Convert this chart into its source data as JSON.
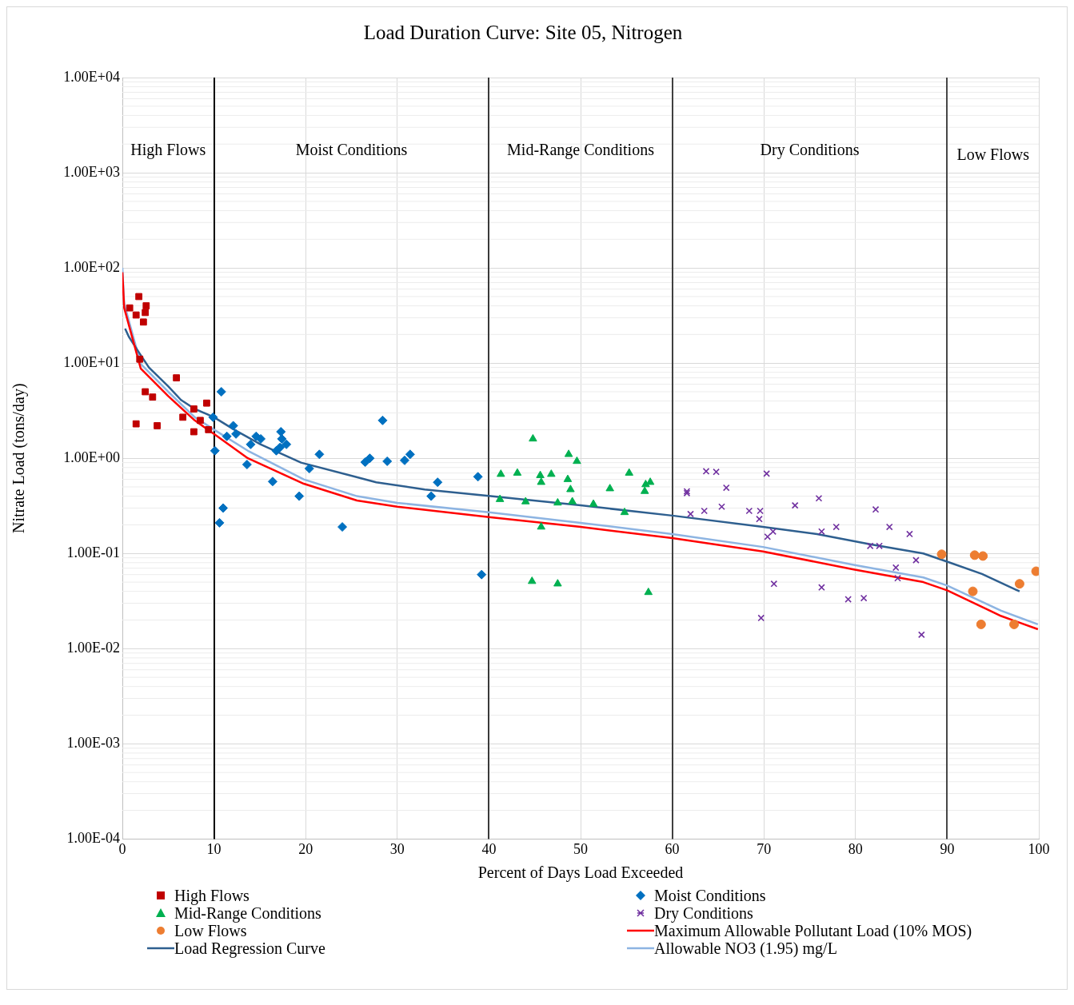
{
  "chart_data": {
    "type": "scatter",
    "title": "Load Duration Curve: Site 05, Nitrogen",
    "xlabel": "Percent of Days Load Exceeded",
    "ylabel": "Nitrate Load (tons/day)",
    "xlim": [
      0,
      100
    ],
    "xticks": [
      0,
      10,
      20,
      30,
      40,
      50,
      60,
      70,
      80,
      90,
      100
    ],
    "ylim": [
      0.0001,
      10000
    ],
    "yticks": [
      {
        "value": 0.0001,
        "label": "1.00E-04"
      },
      {
        "value": 0.001,
        "label": "1.00E-03"
      },
      {
        "value": 0.01,
        "label": "1.00E-02"
      },
      {
        "value": 0.1,
        "label": "1.00E-01"
      },
      {
        "value": 1,
        "label": "1.00E+00"
      },
      {
        "value": 10,
        "label": "1.00E+01"
      },
      {
        "value": 100,
        "label": "1.00E+02"
      },
      {
        "value": 1000,
        "label": "1.00E+03"
      },
      {
        "value": 10000,
        "label": "1.00E+04"
      }
    ],
    "log": "y",
    "grid": true,
    "legend": "bottom",
    "ref_lines": [
      {
        "axis": "x",
        "value": 10,
        "color": "#000000"
      },
      {
        "axis": "x",
        "value": 40,
        "color": "#3a3a3a"
      },
      {
        "axis": "x",
        "value": 60,
        "color": "#404040"
      },
      {
        "axis": "x",
        "value": 90,
        "color": "#474747"
      }
    ],
    "annotations": [
      "High Flows",
      "Moist Conditions",
      "Mid-Range Conditions",
      "Dry Conditions",
      "Low Flows"
    ],
    "series": [
      {
        "name": "High Flows",
        "type": "scatter",
        "marker": "square",
        "color": "#c00000",
        "x": [
          0.8,
          1.5,
          1.8,
          2.3,
          2.5,
          2.6,
          1.9,
          1.5,
          2.5,
          3.3,
          3.8,
          5.9,
          6.6,
          7.8,
          7.8,
          8.5,
          9.2,
          9.4
        ],
        "values": [
          38,
          32,
          50,
          27,
          34,
          40,
          11,
          2.3,
          5.0,
          4.4,
          2.2,
          7.0,
          2.7,
          3.3,
          1.9,
          2.5,
          3.8,
          2.0
        ]
      },
      {
        "name": "Moist Conditions",
        "type": "scatter",
        "marker": "diamond",
        "color": "#0070c0",
        "x": [
          9.9,
          10.1,
          10.8,
          10.6,
          11.0,
          11.4,
          12.1,
          12.4,
          13.6,
          14.0,
          14.6,
          15.1,
          16.4,
          16.8,
          17.2,
          17.3,
          17.4,
          17.9,
          19.3,
          20.4,
          21.5,
          24.0,
          26.5,
          27.0,
          28.4,
          28.9,
          30.8,
          31.4,
          33.7,
          34.4,
          38.8,
          39.2
        ],
        "values": [
          2.7,
          1.2,
          5.0,
          0.21,
          0.3,
          1.7,
          2.2,
          1.8,
          0.86,
          1.4,
          1.7,
          1.6,
          0.57,
          1.2,
          1.3,
          1.9,
          1.6,
          1.4,
          0.4,
          0.78,
          1.1,
          0.19,
          0.91,
          1.0,
          2.5,
          0.93,
          0.95,
          1.1,
          0.4,
          0.56,
          0.64,
          0.06
        ]
      },
      {
        "name": "Mid-Range Conditions",
        "type": "scatter",
        "marker": "triangle",
        "color": "#00b050",
        "x": [
          41.3,
          43.1,
          41.2,
          44.0,
          44.8,
          45.6,
          45.7,
          46.8,
          47.5,
          45.7,
          44.7,
          47.5,
          48.6,
          48.7,
          48.9,
          49.1,
          49.6,
          51.4,
          53.2,
          54.8,
          55.3,
          57.0,
          57.1,
          57.6,
          57.4
        ],
        "values": [
          0.68,
          0.7,
          0.37,
          0.35,
          1.6,
          0.66,
          0.56,
          0.68,
          0.34,
          0.19,
          0.051,
          0.048,
          0.6,
          1.1,
          0.47,
          0.35,
          0.93,
          0.33,
          0.48,
          0.27,
          0.7,
          0.45,
          0.53,
          0.56,
          0.039
        ]
      },
      {
        "name": "Dry Conditions",
        "type": "scatter",
        "marker": "cross",
        "color": "#7030a0",
        "x": [
          61.6,
          61.6,
          63.7,
          64.8,
          70.3,
          65.9,
          62.0,
          63.5,
          65.4,
          68.4,
          69.6,
          69.5,
          70.4,
          71.0,
          73.4,
          76.0,
          76.3,
          77.9,
          82.2,
          83.7,
          81.6,
          82.6,
          85.9,
          86.6,
          84.4,
          84.6,
          71.1,
          76.3,
          79.2,
          80.9,
          69.7,
          87.2
        ],
        "values": [
          0.45,
          0.43,
          0.73,
          0.72,
          0.69,
          0.49,
          0.26,
          0.28,
          0.31,
          0.28,
          0.28,
          0.23,
          0.15,
          0.17,
          0.32,
          0.38,
          0.17,
          0.19,
          0.29,
          0.19,
          0.12,
          0.12,
          0.16,
          0.085,
          0.071,
          0.055,
          0.048,
          0.044,
          0.033,
          0.034,
          0.021,
          0.014
        ]
      },
      {
        "name": "Low Flows",
        "type": "scatter",
        "marker": "circle",
        "color": "#ed7d31",
        "x": [
          89.4,
          93.0,
          93.9,
          99.7,
          97.9,
          92.8,
          93.7,
          97.3
        ],
        "values": [
          0.098,
          0.096,
          0.094,
          0.065,
          0.048,
          0.04,
          0.018,
          0.018
        ]
      },
      {
        "name": "Maximum Allowable Pollutant Load (10% MOS)",
        "type": "line",
        "color": "#ff0000",
        "x": [
          0,
          0.2,
          2.0,
          5.0,
          7.9,
          10.0,
          13.7,
          19.8,
          25.6,
          30.0,
          40.2,
          50.0,
          60.0,
          69.9,
          79.8,
          87.4,
          90.0,
          95.9,
          99.9
        ],
        "values": [
          90,
          38,
          8.8,
          4.5,
          2.5,
          1.8,
          1.0,
          0.54,
          0.36,
          0.31,
          0.24,
          0.19,
          0.145,
          0.105,
          0.068,
          0.05,
          0.041,
          0.022,
          0.016
        ]
      },
      {
        "name": "Load Regression Curve",
        "type": "line",
        "color": "#2e5f8f",
        "x": [
          0.3,
          0.7,
          1.8,
          2.9,
          5.0,
          6.4,
          7.9,
          10.0,
          12.2,
          15.1,
          19.5,
          25.4,
          27.7,
          33.0,
          40.2,
          50.0,
          60.0,
          69.9,
          75.8,
          81.6,
          87.4,
          90.0,
          93.8,
          97.9
        ],
        "values": [
          23,
          19,
          13,
          9.0,
          5.7,
          4.1,
          3.3,
          2.7,
          2.0,
          1.4,
          0.9,
          0.64,
          0.56,
          0.47,
          0.4,
          0.32,
          0.25,
          0.19,
          0.16,
          0.125,
          0.1,
          0.082,
          0.061,
          0.04
        ]
      },
      {
        "name": "Allowable NO3 (1.95) mg/L",
        "type": "line",
        "color": "#8db4e2",
        "x": [
          0,
          0.2,
          2.0,
          5.0,
          7.9,
          10.0,
          13.7,
          19.8,
          25.6,
          30.0,
          40.2,
          50.0,
          60.0,
          69.9,
          79.8,
          87.4,
          90.0,
          95.9,
          99.9
        ],
        "values": [
          100,
          42,
          9.8,
          5.0,
          2.7,
          2.0,
          1.2,
          0.6,
          0.4,
          0.34,
          0.27,
          0.21,
          0.16,
          0.117,
          0.076,
          0.056,
          0.046,
          0.025,
          0.018
        ]
      }
    ]
  }
}
